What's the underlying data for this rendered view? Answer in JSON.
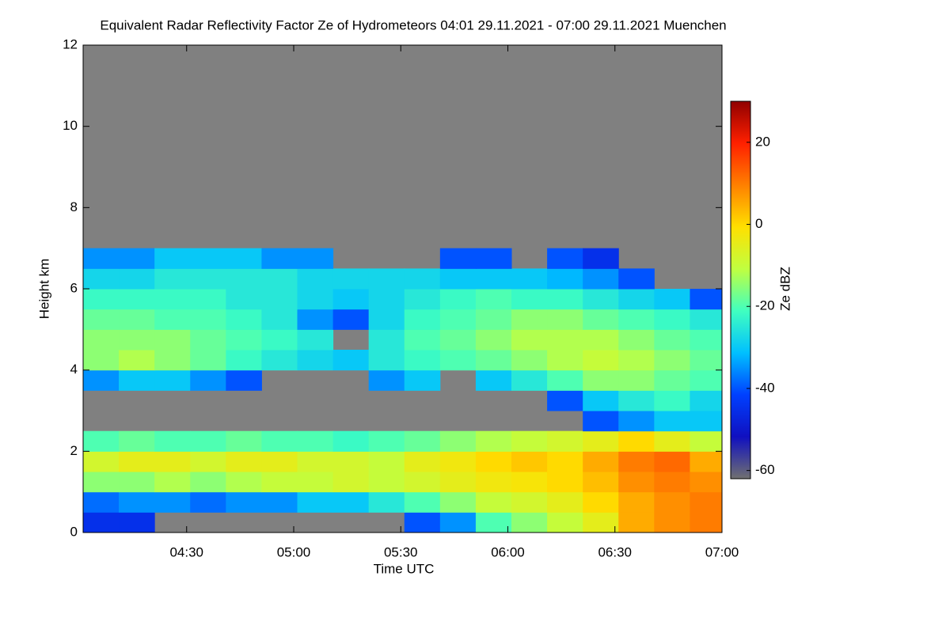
{
  "chart_data": {
    "type": "heatmap",
    "title": "Equivalent Radar Reflectivity Factor Ze of Hydrometeors   04:01 29.11.2021 - 07:00 29.11.2021 Muenchen",
    "x_label": "Time UTC",
    "y_label": "Height km",
    "colorbar_label": "Ze dBZ",
    "xlim": [
      241,
      420
    ],
    "xticks": [
      {
        "value": 270,
        "label": "04:30"
      },
      {
        "value": 300,
        "label": "05:00"
      },
      {
        "value": 330,
        "label": "05:30"
      },
      {
        "value": 360,
        "label": "06:00"
      },
      {
        "value": 390,
        "label": "06:30"
      },
      {
        "value": 420,
        "label": "07:00"
      }
    ],
    "ylim": [
      0,
      12
    ],
    "yticks": [
      0,
      2,
      4,
      6,
      8,
      10,
      12
    ],
    "clim": [
      -62,
      30
    ],
    "cticks": [
      -60,
      -40,
      -20,
      0,
      20
    ],
    "colormap": [
      "#707070",
      "#1010c0",
      "#0040ff",
      "#00c0ff",
      "#40ffc0",
      "#c0ff40",
      "#ffe000",
      "#ff8000",
      "#ff2000",
      "#900000"
    ],
    "background": "#808080",
    "x_bins": [
      241,
      251,
      261,
      271,
      281,
      291,
      301,
      311,
      321,
      331,
      341,
      351,
      361,
      371,
      381,
      391,
      401,
      411,
      420
    ],
    "y_bins": [
      0,
      0.5,
      1,
      1.5,
      2,
      2.5,
      3,
      3.5,
      4,
      4.5,
      5,
      5.5,
      6,
      6.5,
      7
    ],
    "z": [
      [
        -45,
        -45,
        null,
        null,
        null,
        null,
        null,
        null,
        null,
        -40,
        -35,
        -20,
        -15,
        -10,
        -5,
        5,
        8,
        10
      ],
      [
        -38,
        -35,
        -35,
        -38,
        -35,
        -35,
        -30,
        -30,
        -25,
        -20,
        -15,
        -10,
        -8,
        -5,
        0,
        5,
        8,
        10
      ],
      [
        -15,
        -15,
        -12,
        -15,
        -12,
        -10,
        -10,
        -8,
        -10,
        -8,
        -5,
        -3,
        -2,
        0,
        3,
        8,
        10,
        8
      ],
      [
        -8,
        -5,
        -5,
        -8,
        -5,
        -5,
        -8,
        -8,
        -10,
        -5,
        -3,
        0,
        2,
        0,
        5,
        10,
        12,
        5
      ],
      [
        -20,
        -18,
        -20,
        -20,
        -18,
        -20,
        -20,
        -22,
        -20,
        -18,
        -15,
        -12,
        -10,
        -8,
        -5,
        0,
        -5,
        -10
      ],
      [
        null,
        null,
        null,
        null,
        null,
        null,
        null,
        null,
        null,
        null,
        null,
        null,
        null,
        null,
        -40,
        -35,
        -30,
        -30
      ],
      [
        null,
        null,
        null,
        null,
        null,
        null,
        null,
        null,
        null,
        null,
        null,
        null,
        null,
        -40,
        -30,
        -25,
        -22,
        -28
      ],
      [
        -35,
        -30,
        -30,
        -35,
        -40,
        null,
        null,
        null,
        -35,
        -30,
        null,
        -30,
        -25,
        -20,
        -15,
        -15,
        -18,
        -20
      ],
      [
        -15,
        -12,
        -15,
        -18,
        -22,
        -25,
        -28,
        -30,
        -25,
        -22,
        -20,
        -18,
        -15,
        -12,
        -10,
        -12,
        -15,
        -18
      ],
      [
        -15,
        -15,
        -15,
        -18,
        -20,
        -22,
        -25,
        null,
        -25,
        -20,
        -18,
        -15,
        -12,
        -12,
        -12,
        -15,
        -18,
        -20
      ],
      [
        -18,
        -18,
        -20,
        -20,
        -22,
        -25,
        -35,
        -40,
        -28,
        -22,
        -20,
        -18,
        -15,
        -15,
        -18,
        -20,
        -22,
        -25
      ],
      [
        -22,
        -22,
        -22,
        -22,
        -25,
        -25,
        -28,
        -30,
        -28,
        -25,
        -22,
        -20,
        -22,
        -22,
        -25,
        -28,
        -30,
        -40
      ],
      [
        -28,
        -28,
        -25,
        -25,
        -25,
        -25,
        -28,
        -28,
        -28,
        -28,
        -30,
        -30,
        -30,
        -32,
        -35,
        -40,
        null,
        null
      ],
      [
        -35,
        -35,
        -30,
        -30,
        -30,
        -35,
        -35,
        null,
        null,
        null,
        -40,
        -40,
        null,
        -40,
        -45,
        null,
        null,
        null
      ]
    ]
  }
}
